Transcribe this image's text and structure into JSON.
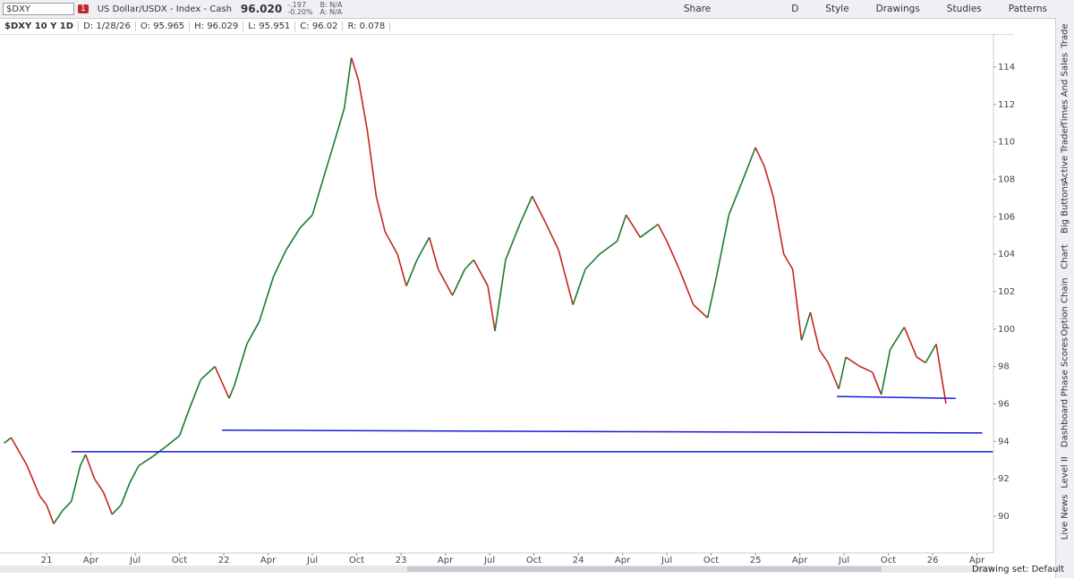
{
  "toolbar": {
    "symbol": "$DXY",
    "alert_count": "1",
    "description": "US Dollar/USDX - Index - Cash",
    "last": "96.020",
    "net_change": "-.197",
    "pct_change": "-0.20%",
    "bid": "B: N/A",
    "ask": "A: N/A",
    "share": "Share",
    "aggregation": "D",
    "style": "Style",
    "drawings": "Drawings",
    "studies": "Studies",
    "patterns": "Patterns"
  },
  "info_bar": {
    "chart_label": "$DXY 10 Y 1D",
    "date": "D: 1/28/26",
    "open": "O: 95.965",
    "high": "H: 96.029",
    "low": "L: 95.951",
    "close": "C: 96.02",
    "range": "R: 0.078"
  },
  "side_tabs": [
    "Trade",
    "Times And Sales",
    "Active Trader",
    "Big Buttons",
    "Chart",
    "Option Chain",
    "Phase Scores",
    "Dashboard",
    "Level II",
    "Live News"
  ],
  "status": {
    "drawing_set": "Drawing set: Default"
  },
  "chart_data": {
    "type": "candlestick",
    "xlim": [
      2020.737,
      2026.343
    ],
    "ylim": [
      88.04,
      115.67
    ],
    "xticks": [
      {
        "value": 2021,
        "label": "21"
      },
      {
        "value": 2021.25,
        "label": "Apr"
      },
      {
        "value": 2021.5,
        "label": "Jul"
      },
      {
        "value": 2021.75,
        "label": "Oct"
      },
      {
        "value": 2022,
        "label": "22"
      },
      {
        "value": 2022.25,
        "label": "Apr"
      },
      {
        "value": 2022.5,
        "label": "Jul"
      },
      {
        "value": 2022.75,
        "label": "Oct"
      },
      {
        "value": 2023,
        "label": "23"
      },
      {
        "value": 2023.25,
        "label": "Apr"
      },
      {
        "value": 2023.5,
        "label": "Jul"
      },
      {
        "value": 2023.75,
        "label": "Oct"
      },
      {
        "value": 2024,
        "label": "24"
      },
      {
        "value": 2024.25,
        "label": "Apr"
      },
      {
        "value": 2024.5,
        "label": "Jul"
      },
      {
        "value": 2024.75,
        "label": "Oct"
      },
      {
        "value": 2025,
        "label": "25"
      },
      {
        "value": 2025.25,
        "label": "Apr"
      },
      {
        "value": 2025.5,
        "label": "Jul"
      },
      {
        "value": 2025.75,
        "label": "Oct"
      },
      {
        "value": 2026,
        "label": "26"
      },
      {
        "value": 2026.25,
        "label": "Apr"
      }
    ],
    "yticks": [
      90,
      92,
      94,
      96,
      98,
      100,
      102,
      104,
      106,
      108,
      110,
      112,
      114
    ],
    "up_color": "#1a7a2e",
    "down_color": "#c4261d",
    "series": [
      {
        "name": "$DXY",
        "x": [
          2020.76,
          2020.8,
          2020.89,
          2020.96,
          2021.0,
          2021.04,
          2021.09,
          2021.14,
          2021.19,
          2021.22,
          2021.27,
          2021.32,
          2021.37,
          2021.42,
          2021.47,
          2021.52,
          2021.6,
          2021.67,
          2021.75,
          2021.8,
          2021.87,
          2021.95,
          2022.03,
          2022.06,
          2022.13,
          2022.2,
          2022.28,
          2022.35,
          2022.43,
          2022.5,
          2022.56,
          2022.63,
          2022.68,
          2022.72,
          2022.76,
          2022.81,
          2022.86,
          2022.91,
          2022.98,
          2023.03,
          2023.09,
          2023.16,
          2023.21,
          2023.29,
          2023.36,
          2023.41,
          2023.49,
          2023.53,
          2023.59,
          2023.67,
          2023.74,
          2023.82,
          2023.89,
          2023.97,
          2024.04,
          2024.12,
          2024.22,
          2024.27,
          2024.35,
          2024.45,
          2024.5,
          2024.57,
          2024.65,
          2024.73,
          2024.78,
          2024.85,
          2024.93,
          2025.0,
          2025.05,
          2025.1,
          2025.16,
          2025.21,
          2025.26,
          2025.31,
          2025.36,
          2025.41,
          2025.47,
          2025.51,
          2025.59,
          2025.66,
          2025.71,
          2025.76,
          2025.84,
          2025.91,
          2025.96,
          2026.02,
          2026.075
        ],
        "values": [
          93.9,
          94.2,
          92.7,
          91.1,
          90.6,
          89.6,
          90.3,
          90.8,
          92.7,
          93.3,
          92.0,
          91.3,
          90.1,
          90.6,
          91.8,
          92.7,
          93.2,
          93.7,
          94.3,
          95.6,
          97.3,
          98.0,
          96.3,
          97.0,
          99.2,
          100.4,
          102.8,
          104.2,
          105.4,
          106.1,
          108.0,
          110.2,
          111.8,
          114.5,
          113.3,
          110.6,
          107.1,
          105.2,
          104.0,
          102.3,
          103.7,
          104.9,
          103.2,
          101.8,
          103.2,
          103.7,
          102.3,
          99.9,
          103.7,
          105.6,
          107.1,
          105.6,
          104.2,
          101.3,
          103.2,
          104.0,
          104.7,
          106.1,
          104.9,
          105.6,
          104.7,
          103.2,
          101.3,
          100.6,
          102.8,
          106.1,
          108.0,
          109.7,
          108.7,
          107.1,
          104.0,
          103.2,
          99.4,
          100.9,
          98.9,
          98.2,
          96.8,
          98.5,
          98.0,
          97.7,
          96.5,
          98.9,
          100.1,
          98.5,
          98.2,
          99.2,
          96.02
        ]
      }
    ],
    "drawings": [
      {
        "color": "#1a1adc",
        "x": [
          2025.46,
          2026.13
        ],
        "y": [
          96.4,
          96.3
        ]
      },
      {
        "color": "#1a1adc",
        "x": [
          2021.99,
          2026.28
        ],
        "y": [
          94.6,
          94.45
        ]
      },
      {
        "color": "#1a1adc",
        "x": [
          2021.14,
          2026.34
        ],
        "y": [
          93.45,
          93.45
        ]
      }
    ]
  }
}
